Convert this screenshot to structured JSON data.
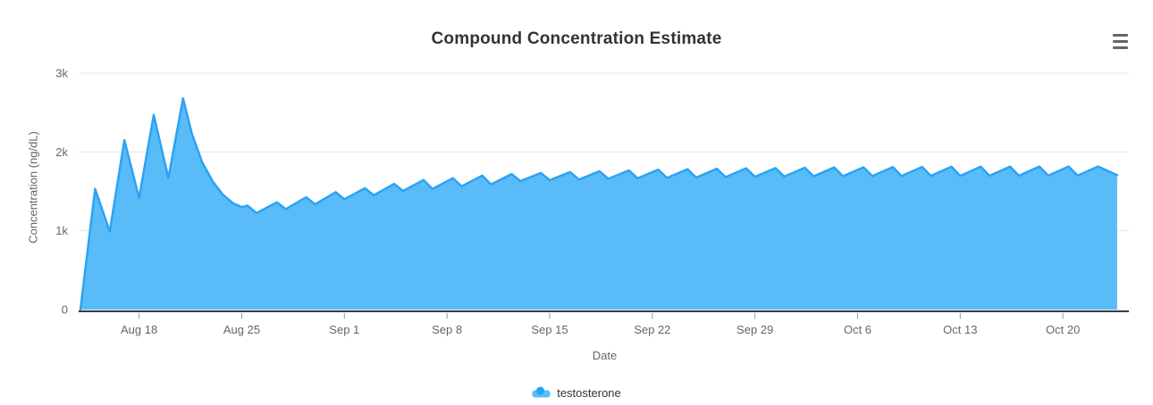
{
  "header": {
    "title": "Compound Concentration Estimate"
  },
  "toolbar": {
    "context_menu": "chart context menu"
  },
  "legend": {
    "items": [
      {
        "label": "testosterone",
        "marker_fill": "#59BCF8",
        "marker_dot": "#2BA3F4"
      }
    ]
  },
  "chart_data": {
    "type": "area",
    "title": "Compound Concentration Estimate",
    "xlabel": "Date",
    "ylabel": "Concentration (ng/dL)",
    "ylim": [
      0,
      3000
    ],
    "grid": "horizontal",
    "legend_position": "bottom",
    "colors": {
      "line": "#2BA3F4",
      "fill": "#59BCF8",
      "fill_opacity": 0.75,
      "gridline": "#e6e6e6",
      "axis_line": "#383c44",
      "tick_mark": "#999999",
      "tick_text": "#666666"
    },
    "y_ticks": [
      {
        "value": 0,
        "label": "0"
      },
      {
        "value": 1000,
        "label": "1k"
      },
      {
        "value": 2000,
        "label": "2k"
      },
      {
        "value": 3000,
        "label": "3k"
      }
    ],
    "x_ticks": [
      {
        "day": 4,
        "label": "Aug 18"
      },
      {
        "day": 11,
        "label": "Aug 25"
      },
      {
        "day": 18,
        "label": "Sep 1"
      },
      {
        "day": 25,
        "label": "Sep 8"
      },
      {
        "day": 32,
        "label": "Sep 15"
      },
      {
        "day": 39,
        "label": "Sep 22"
      },
      {
        "day": 46,
        "label": "Sep 29"
      },
      {
        "day": 53,
        "label": "Oct 6"
      },
      {
        "day": 60,
        "label": "Oct 13"
      },
      {
        "day": 67,
        "label": "Oct 20"
      }
    ],
    "series": [
      {
        "name": "testosterone",
        "x_unit": "days from series start (4 days before Aug 18)",
        "points": [
          [
            0,
            0
          ],
          [
            1,
            1530
          ],
          [
            2,
            990
          ],
          [
            3,
            2150
          ],
          [
            4,
            1415
          ],
          [
            5,
            2470
          ],
          [
            6,
            1670
          ],
          [
            7,
            2680
          ],
          [
            7.6,
            2230
          ],
          [
            8.3,
            1870
          ],
          [
            9,
            1630
          ],
          [
            9.7,
            1460
          ],
          [
            10.4,
            1350
          ],
          [
            11,
            1300
          ],
          [
            11.4,
            1320
          ],
          [
            12,
            1225
          ],
          [
            13.4,
            1360
          ],
          [
            14,
            1275
          ],
          [
            15.4,
            1425
          ],
          [
            16,
            1335
          ],
          [
            17.4,
            1490
          ],
          [
            18,
            1400
          ],
          [
            19.4,
            1540
          ],
          [
            20,
            1450
          ],
          [
            21.4,
            1595
          ],
          [
            22,
            1505
          ],
          [
            23.4,
            1645
          ],
          [
            24,
            1530
          ],
          [
            25.4,
            1668
          ],
          [
            26,
            1565
          ],
          [
            27.4,
            1700
          ],
          [
            28,
            1588
          ],
          [
            29.4,
            1720
          ],
          [
            30,
            1630
          ],
          [
            31.4,
            1733
          ],
          [
            32,
            1641
          ],
          [
            33.4,
            1745
          ],
          [
            34,
            1650
          ],
          [
            35.4,
            1756
          ],
          [
            36,
            1658
          ],
          [
            37.4,
            1766
          ],
          [
            38,
            1665
          ],
          [
            39.4,
            1775
          ],
          [
            40,
            1671
          ],
          [
            41.4,
            1781
          ],
          [
            42,
            1676
          ],
          [
            43.4,
            1787
          ],
          [
            44,
            1681
          ],
          [
            45.4,
            1792
          ],
          [
            46,
            1685
          ],
          [
            47.4,
            1796
          ],
          [
            48,
            1688
          ],
          [
            49.4,
            1800
          ],
          [
            50,
            1690
          ],
          [
            51.4,
            1803
          ],
          [
            52,
            1692
          ],
          [
            53.4,
            1806
          ],
          [
            54,
            1694
          ],
          [
            55.4,
            1808
          ],
          [
            56,
            1695
          ],
          [
            57.4,
            1810
          ],
          [
            58,
            1696
          ],
          [
            59.4,
            1812
          ],
          [
            60,
            1697
          ],
          [
            61.4,
            1813
          ],
          [
            62,
            1698
          ],
          [
            63.4,
            1814
          ],
          [
            64,
            1698
          ],
          [
            65.4,
            1815
          ],
          [
            66,
            1699
          ],
          [
            67.4,
            1815
          ],
          [
            68,
            1699
          ],
          [
            69.4,
            1816
          ],
          [
            70.7,
            1705
          ]
        ]
      }
    ]
  }
}
